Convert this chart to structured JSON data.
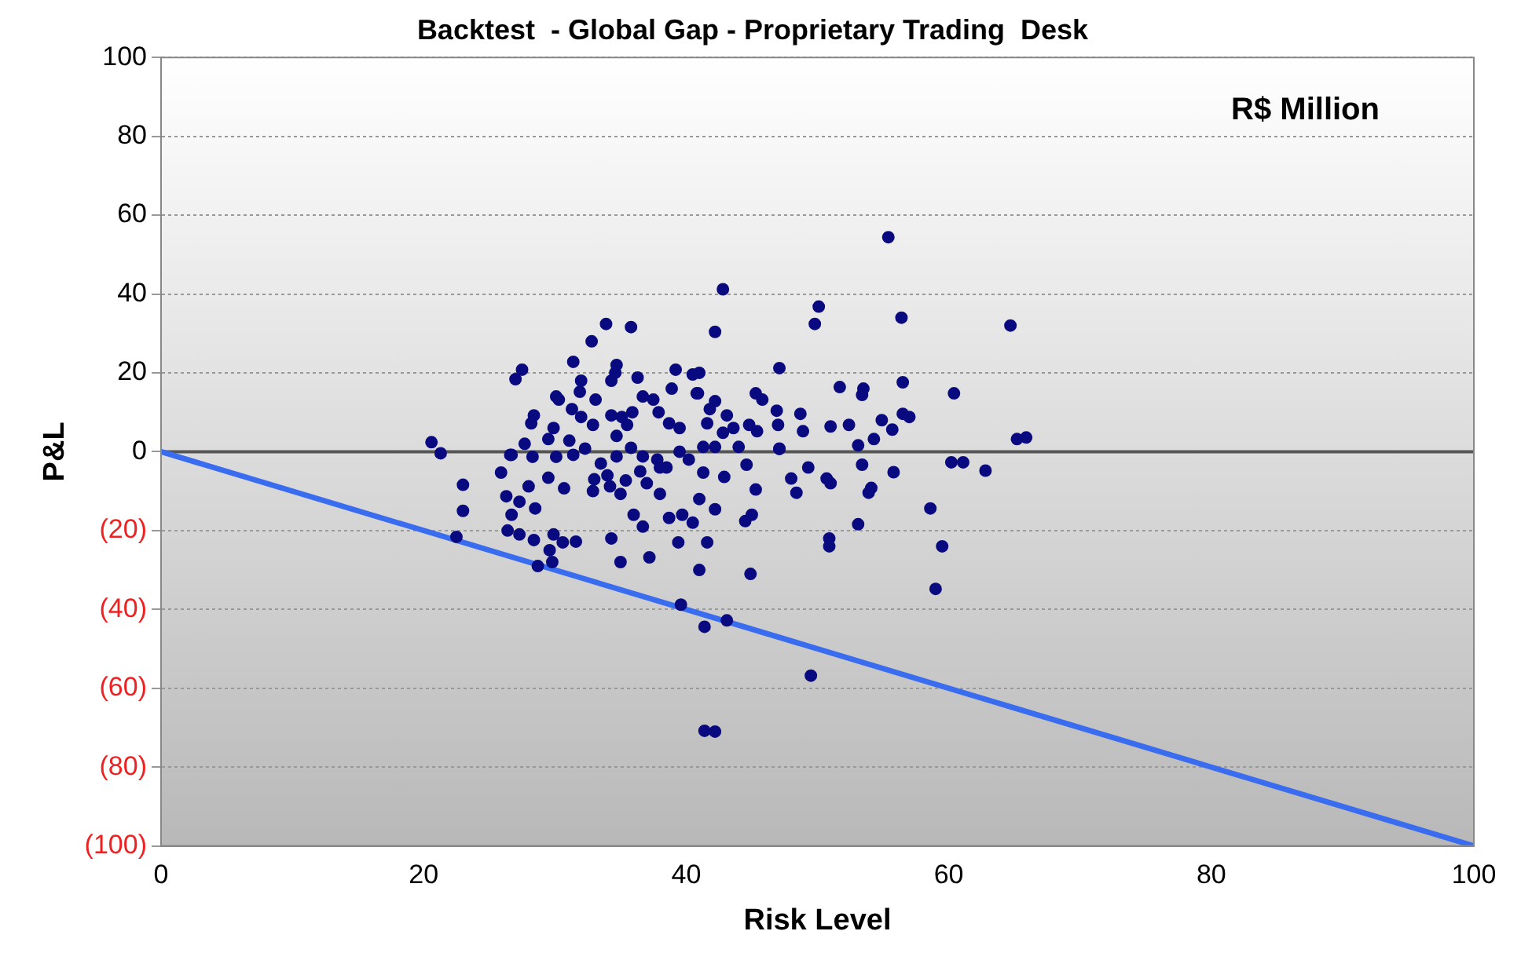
{
  "chart_data": {
    "type": "scatter",
    "title": "Backtest  - Global Gap - Proprietary Trading  Desk",
    "xlabel": "Risk Level",
    "ylabel": "P&L",
    "annotations": [
      "R$ Million"
    ],
    "xlim": [
      0,
      100
    ],
    "xticks": [
      0,
      20,
      40,
      60,
      80,
      100
    ],
    "ylim": [
      -100,
      100
    ],
    "yticks": [
      {
        "value": -100,
        "label": "(100)"
      },
      {
        "value": -80,
        "label": "(80)"
      },
      {
        "value": -60,
        "label": "(60)"
      },
      {
        "value": -40,
        "label": "(40)"
      },
      {
        "value": -20,
        "label": "(20)"
      },
      0,
      20,
      40,
      60,
      80,
      100
    ],
    "grid": "y",
    "legend": false,
    "marker": "circle",
    "series": [
      {
        "color": "#0a0a80",
        "x": [
          20.6,
          21.3,
          23,
          23,
          22.5,
          28.7,
          29.8,
          29.6,
          26.4,
          27.3,
          28.4,
          29.9,
          30.6,
          31.6,
          34.3,
          35,
          37.2,
          39.4,
          41,
          39.6,
          41.4,
          41.4,
          26.3,
          27.3,
          28.5,
          26.7,
          36,
          36.7,
          38.7,
          39.7,
          40.5,
          41,
          25.9,
          28,
          29.5,
          30.7,
          32.9,
          34.2,
          35,
          35.4,
          38,
          26.7,
          28.3,
          30.1,
          31.4,
          42.2,
          49.5,
          43.1,
          59,
          59.5,
          58.6,
          53.1,
          50.9,
          50.9,
          44.9,
          41.6,
          44.5,
          45,
          45.3,
          48,
          48.4,
          49.3,
          50.7,
          51,
          53.9,
          54.1,
          55.8,
          53.4,
          60.2,
          61.1,
          62.8,
          44.6,
          42.9,
          42.2,
          41.3,
          47.1,
          55.4,
          42.8,
          50.1,
          49.8,
          56.4,
          64.7,
          42.2,
          47.1,
          51.7,
          53.5,
          53.4,
          56.5,
          60.4,
          56.5,
          57,
          54.9,
          55.7,
          54.3,
          53.1,
          65.2,
          65.9,
          51,
          52.4,
          48.7,
          48.9,
          46.9,
          47,
          47.1,
          45.3,
          45.8,
          43.1,
          42.2,
          41.8,
          40.9,
          44.8,
          45.4,
          43.6,
          42.8,
          44,
          42.2,
          41,
          33.9,
          35.8,
          32.8,
          31.4,
          27.5,
          27,
          34.7,
          34.6,
          34.3,
          36.3,
          39.2,
          40.5,
          40.8,
          38.9,
          32,
          31.9,
          33.1,
          30.1,
          30.3,
          31.3,
          28.4,
          28.2,
          29.9,
          29.5,
          27.7,
          26.6,
          34.3,
          35.1,
          35.5,
          35.9,
          36.7,
          37.5,
          37.9,
          38.7,
          39.5,
          32,
          32.9,
          31.1,
          32.3,
          34.7,
          36.7,
          38,
          39.5,
          41.6,
          41.3,
          34.7,
          33.5,
          36.5,
          37.8,
          35.8,
          33,
          38.5,
          40.2,
          37,
          34
        ],
        "values": [
          2.4,
          -0.4,
          -8.4,
          -15,
          -21.6,
          -29,
          -28,
          -25,
          -20,
          -21,
          -22.4,
          -21,
          -23,
          -22.8,
          -22,
          -28,
          -26.8,
          -23,
          -30,
          -38.8,
          -44.4,
          -70.8,
          -11.3,
          -12.7,
          -14.4,
          -16,
          -16,
          -19,
          -16.8,
          -16,
          -18,
          -12,
          -5.3,
          -8.8,
          -6.6,
          -9.3,
          -10,
          -8.8,
          -10.7,
          -7.3,
          -10.7,
          -0.8,
          -1.3,
          -1.3,
          -0.8,
          -71,
          -56.8,
          -42.8,
          -34.8,
          -24,
          -14.4,
          -18.4,
          -22,
          -24,
          -31,
          -23,
          -17.6,
          -16,
          -9.6,
          -6.8,
          -10.4,
          -4,
          -6.8,
          -8,
          -10.4,
          -9.2,
          -5.2,
          -3.3,
          -2.7,
          -2.7,
          -4.8,
          -3.3,
          -6.4,
          -14.6,
          -5.3,
          0.7,
          54.4,
          41.2,
          36.8,
          32.4,
          34,
          32,
          30.4,
          21.2,
          16.4,
          16,
          14.4,
          17.6,
          14.8,
          9.6,
          8.8,
          8,
          5.6,
          3.2,
          1.6,
          3.2,
          3.6,
          6.4,
          6.8,
          9.6,
          5.2,
          10.4,
          6.8,
          0.8,
          14.8,
          13.2,
          9.2,
          12.8,
          10.8,
          14.8,
          6.8,
          5.2,
          6,
          4.8,
          1.2,
          1.2,
          20,
          32.4,
          31.6,
          28,
          22.8,
          20.8,
          18.4,
          22,
          20,
          18,
          18.8,
          20.8,
          19.6,
          14.8,
          16,
          18,
          15.2,
          13.2,
          14,
          13.2,
          10.8,
          9.2,
          7.2,
          6,
          3.2,
          2,
          -0.8,
          9.2,
          8.8,
          6.8,
          10,
          14,
          13.2,
          10,
          7.2,
          6,
          8.8,
          6.8,
          2.8,
          0.8,
          -1.2,
          -1.2,
          -4,
          0,
          7.2,
          1.2,
          4,
          -3,
          -5,
          -2,
          1,
          -7,
          -4,
          -2,
          -8,
          -6
        ]
      },
      {
        "type": "line",
        "color": "#3a6cf0",
        "marker": "none",
        "x": [
          0,
          100
        ],
        "values": [
          0,
          -100
        ]
      }
    ]
  }
}
